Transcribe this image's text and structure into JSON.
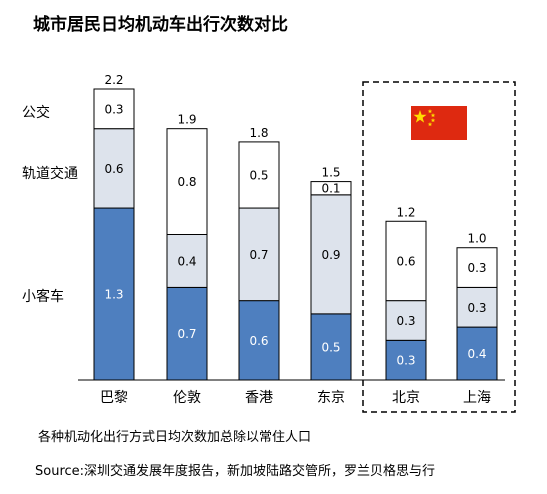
{
  "chart_data": {
    "type": "bar",
    "stacked": true,
    "title": "城市居民日均机动车出行次数对比",
    "categories": [
      "巴黎",
      "伦敦",
      "香港",
      "东京",
      "北京",
      "上海"
    ],
    "series": [
      {
        "name": "小客车",
        "values": [
          1.3,
          0.7,
          0.6,
          0.5,
          0.3,
          0.4
        ],
        "color": "#4e7fbf"
      },
      {
        "name": "轨道交通",
        "values": [
          0.6,
          0.4,
          0.7,
          0.9,
          0.3,
          0.3
        ],
        "color": "#dde3ec"
      },
      {
        "name": "公交",
        "values": [
          0.3,
          0.8,
          0.5,
          0.1,
          0.6,
          0.3
        ],
        "color": "#ffffff"
      }
    ],
    "totals": [
      "2.2",
      "1.9",
      "1.8",
      "1.5",
      "1.2",
      "1.0"
    ],
    "highlight_categories": [
      "北京",
      "上海"
    ],
    "highlight_icon": "china-flag-icon",
    "legend_position": "left",
    "ylim": [
      0,
      2.2
    ],
    "grid": false,
    "note": "各种机动化出行方式日均次数加总除以常住人口",
    "source": "Source:深圳交通发展年度报告，新加坡陆路交管所，罗兰贝格思与行"
  }
}
